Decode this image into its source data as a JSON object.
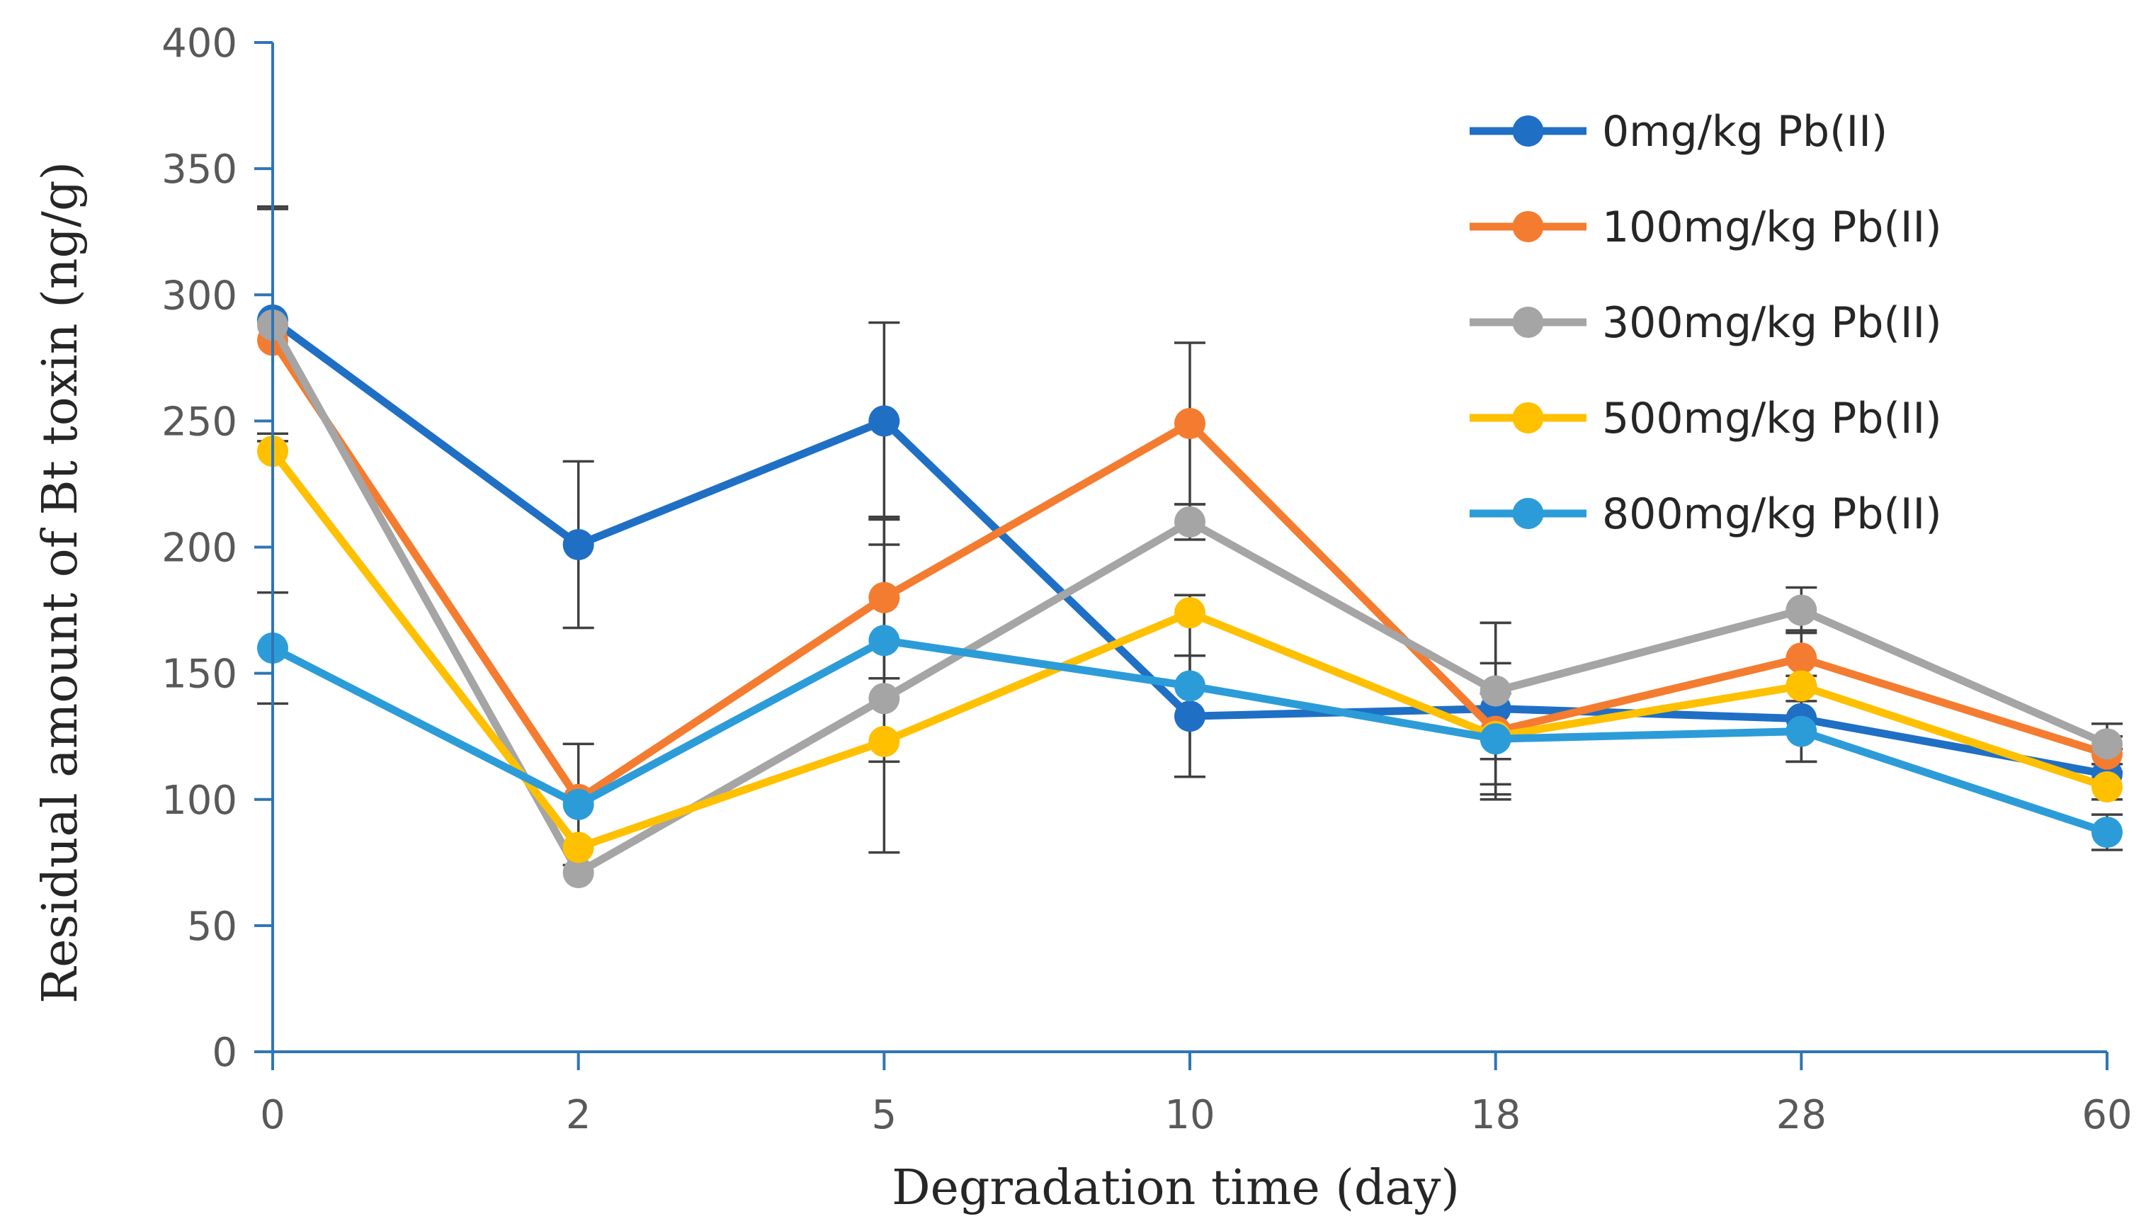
{
  "chart_data": {
    "type": "line",
    "title": "",
    "xlabel": "Degradation time (day)",
    "ylabel": "Residual amount of Bt toxin (ng/g)",
    "categories": [
      "0",
      "2",
      "5",
      "10",
      "18",
      "28",
      "60"
    ],
    "ylim": [
      0,
      400
    ],
    "yticks": [
      0,
      50,
      100,
      150,
      200,
      250,
      300,
      350,
      400
    ],
    "grid": false,
    "legend_position": "top-right",
    "series": [
      {
        "name": "0mg/kg Pb(II)",
        "color": "#1F6FC5",
        "values": [
          290,
          201,
          250,
          133,
          136,
          132,
          110
        ],
        "errors": [
          45,
          33,
          39,
          24,
          34,
          17,
          10
        ]
      },
      {
        "name": "100mg/kg Pb(II)",
        "color": "#F47C30",
        "values": [
          282,
          100,
          180,
          249,
          127,
          156,
          118
        ],
        "errors": [
          0,
          0,
          32,
          32,
          27,
          11,
          7
        ]
      },
      {
        "name": "300mg/kg Pb(II)",
        "color": "#A5A5A5",
        "values": [
          288,
          71,
          140,
          210,
          143,
          175,
          122
        ],
        "errors": [
          46,
          0,
          61,
          7,
          27,
          9,
          8
        ]
      },
      {
        "name": "500mg/kg Pb(II)",
        "color": "#FFC000",
        "values": [
          238,
          81,
          123,
          174,
          125,
          145,
          105
        ],
        "errors": [
          0,
          0,
          0,
          0,
          0,
          0,
          0
        ]
      },
      {
        "name": "800mg/kg Pb(II)",
        "color": "#2C9CD9",
        "values": [
          160,
          98,
          163,
          145,
          124,
          127,
          87
        ],
        "errors": [
          22,
          24,
          48,
          36,
          18,
          12,
          7
        ]
      }
    ]
  }
}
